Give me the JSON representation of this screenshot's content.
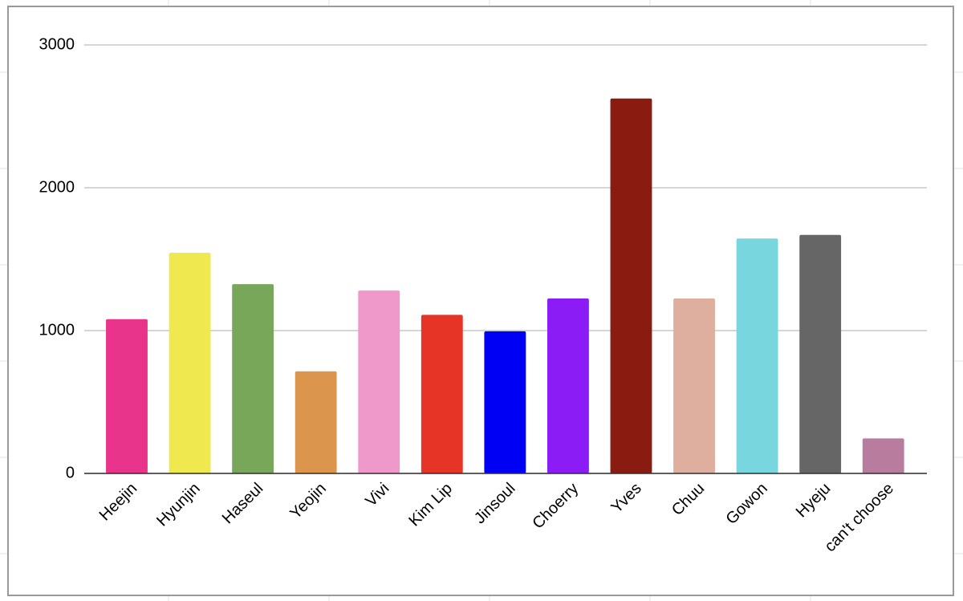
{
  "chart_data": {
    "type": "bar",
    "categories": [
      "Heejin",
      "Hyunjin",
      "Haseul",
      "Yeojin",
      "Vivi",
      "Kim Lip",
      "Jinsoul",
      "Choerry",
      "Yves",
      "Chuu",
      "Gowon",
      "Hyeju",
      "can't choose"
    ],
    "values": [
      1080,
      1545,
      1325,
      715,
      1280,
      1110,
      995,
      1225,
      2625,
      1225,
      1645,
      1670,
      245
    ],
    "colors": [
      "#e9348b",
      "#f0e84f",
      "#78a75a",
      "#dc954c",
      "#ee99ca",
      "#e63527",
      "#0000f5",
      "#8b1cf5",
      "#891b10",
      "#deae9e",
      "#78d6df",
      "#666666",
      "#b87d9e"
    ],
    "ylim": [
      0,
      3000
    ],
    "yticks": [
      0,
      1000,
      2000,
      3000
    ],
    "grid": true
  }
}
